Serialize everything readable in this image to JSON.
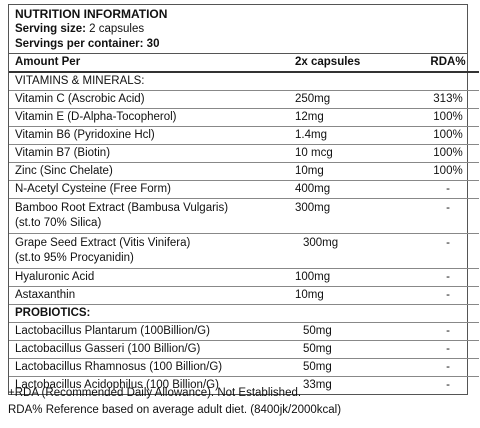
{
  "header": {
    "title": "NUTRITION INFORMATION",
    "serving_size_label": "Serving size:",
    "serving_size_value": "2 capsules",
    "servings_label": "Servings per container:",
    "servings_value": "30"
  },
  "columns": {
    "amount_per": "Amount Per",
    "capsules": "2x capsules",
    "rda": "RDA%"
  },
  "sections": {
    "vitamins": "VITAMINS & MINERALS:",
    "probiotics": "PROBIOTICS:"
  },
  "rows": [
    {
      "name": "Vitamin C (Ascrobic Acid)",
      "amount": "250mg",
      "rda": "313%"
    },
    {
      "name": "Vitamin E (D-Alpha-Tocopherol)",
      "amount": "12mg",
      "rda": "100%"
    },
    {
      "name": "Vitamin B6 (Pyridoxine Hcl)",
      "amount": "1.4mg",
      "rda": "100%"
    },
    {
      "name": "Vitamin B7 (Biotin)",
      "amount": "10 mcg",
      "rda": "100%"
    },
    {
      "name": "Zinc (Sinc Chelate)",
      "amount": "10mg",
      "rda": "100%"
    },
    {
      "name": "N-Acetyl Cysteine (Free Form)",
      "amount": "400mg",
      "rda": "-"
    },
    {
      "name": "Bamboo Root Extract (Bambusa Vulgaris)",
      "name2": "(st.to 70% Silica)",
      "amount": "300mg",
      "rda": "-"
    },
    {
      "name": "Grape Seed Extract (Vitis Vinifera)",
      "name2": "(st.to 95% Procyanidin)",
      "amount": "300mg",
      "rda": "-"
    },
    {
      "name": "Hyaluronic Acid",
      "amount": "100mg",
      "rda": "-"
    },
    {
      "name": "Astaxanthin",
      "amount": "10mg",
      "rda": "-"
    }
  ],
  "probiotics": [
    {
      "name": "Lactobacillus Plantarum (100Billion/G)",
      "amount": "50mg",
      "rda": "-"
    },
    {
      "name": "Lactobacillus Gasseri (100 Billion/G)",
      "amount": "50mg",
      "rda": "-"
    },
    {
      "name": "Lactobacillus Rhamnosus (100 Billion/G)",
      "amount": "50mg",
      "rda": "-"
    },
    {
      "name": "Lactobacillus Acidophilus (100 Billion/G)",
      "amount": "33mg",
      "rda": "-"
    }
  ],
  "footnotes": {
    "line1": "+RDA (Recommended Daily Allowance). Not Established.",
    "line2": "RDA% Reference based on average adult diet. (8400jk/2000kcal)"
  }
}
